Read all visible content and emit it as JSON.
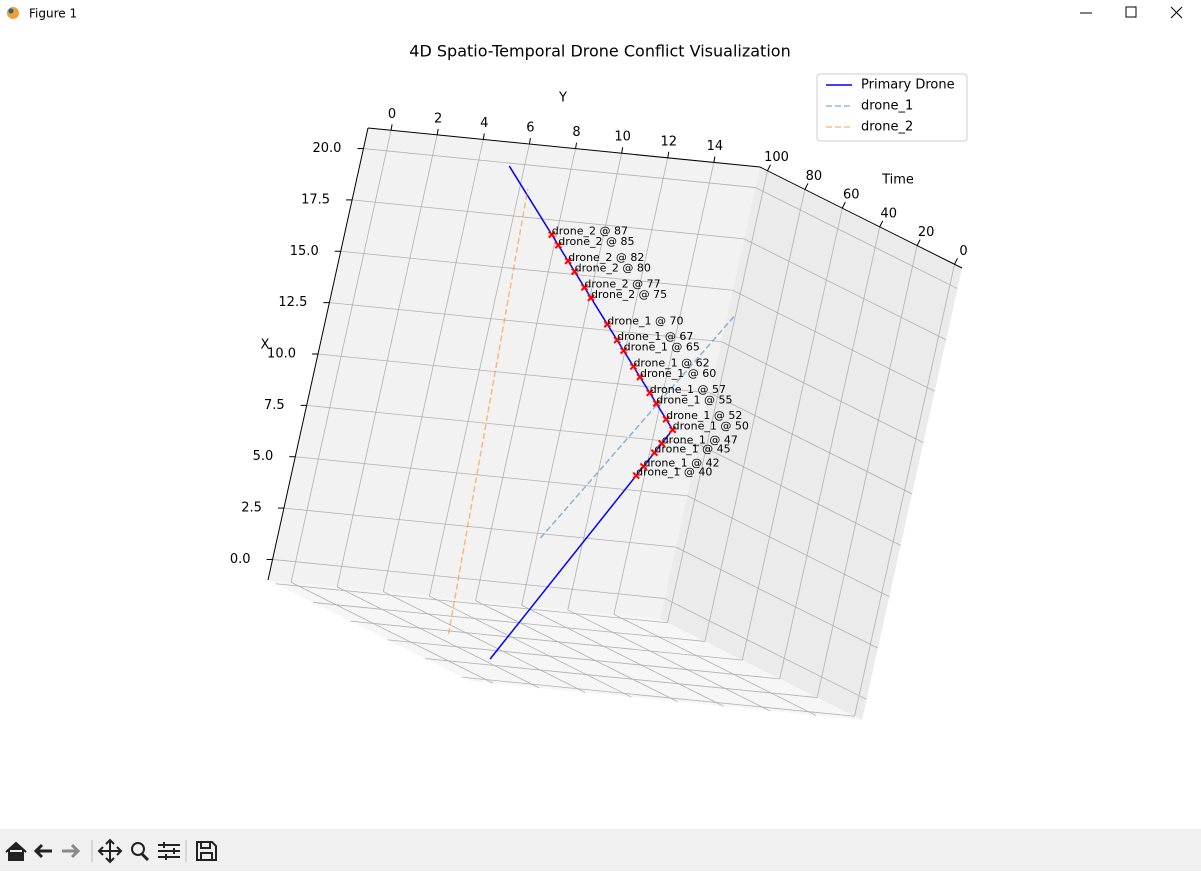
{
  "window": {
    "title": "Figure 1"
  },
  "chart_data": {
    "type": "line3d",
    "title": "4D Spatio-Temporal Drone Conflict Visualization",
    "xlabel": "X",
    "ylabel": "Y",
    "zlabel": "Time",
    "xlim": [
      -1,
      21
    ],
    "ylim": [
      -1,
      16
    ],
    "zlim": [
      -4,
      104
    ],
    "xticks": [
      {
        "value": 0,
        "label": "0.0"
      },
      2.5,
      {
        "value": 5,
        "label": "5.0"
      },
      7.5,
      {
        "value": 10,
        "label": "10.0"
      },
      12.5,
      {
        "value": 15,
        "label": "15.0"
      },
      17.5,
      {
        "value": 20,
        "label": "20.0"
      }
    ],
    "yticks": [
      0,
      2,
      4,
      6,
      8,
      10,
      12,
      14
    ],
    "zticks": [
      0,
      20,
      40,
      60,
      80,
      100
    ],
    "legend": "upper right",
    "series": [
      {
        "name": "Primary Drone",
        "color": "#0000ff",
        "dash": false,
        "opacity": 1,
        "x": [
          0,
          10,
          20
        ],
        "y": [
          0,
          10,
          5
        ],
        "z": [
          0,
          50,
          100
        ]
      },
      {
        "name": "drone_1",
        "color": "#1f77b4",
        "dash": true,
        "opacity": 0.5,
        "x": [
          6,
          14
        ],
        "y": [
          1,
          16
        ],
        "z": [
          0,
          100
        ]
      },
      {
        "name": "drone_2",
        "color": "#ff7f0e",
        "dash": true,
        "opacity": 0.5,
        "x": [
          1,
          19
        ],
        "y": [
          -2,
          6
        ],
        "z": [
          0,
          100
        ]
      }
    ],
    "conflicts": {
      "color": "#ff0000",
      "points": [
        {
          "label": "drone_2 @ 87",
          "t": 87
        },
        {
          "label": "drone_2 @ 85",
          "t": 85
        },
        {
          "label": "drone_2 @ 82",
          "t": 82
        },
        {
          "label": "drone_2 @ 80",
          "t": 80
        },
        {
          "label": "drone_2 @ 77",
          "t": 77
        },
        {
          "label": "drone_2 @ 75",
          "t": 75
        },
        {
          "label": "drone_1 @ 70",
          "t": 70
        },
        {
          "label": "drone_1 @ 67",
          "t": 67
        },
        {
          "label": "drone_1 @ 65",
          "t": 65
        },
        {
          "label": "drone_1 @ 62",
          "t": 62
        },
        {
          "label": "drone_1 @ 60",
          "t": 60
        },
        {
          "label": "drone_1 @ 57",
          "t": 57
        },
        {
          "label": "drone_1 @ 55",
          "t": 55
        },
        {
          "label": "drone_1 @ 52",
          "t": 52
        },
        {
          "label": "drone_1 @ 50",
          "t": 50
        },
        {
          "label": "drone_1 @ 47",
          "t": 47
        },
        {
          "label": "drone_1 @ 45",
          "t": 45
        },
        {
          "label": "drone_1 @ 42",
          "t": 42
        },
        {
          "label": "drone_1 @ 40",
          "t": 40
        }
      ]
    }
  }
}
